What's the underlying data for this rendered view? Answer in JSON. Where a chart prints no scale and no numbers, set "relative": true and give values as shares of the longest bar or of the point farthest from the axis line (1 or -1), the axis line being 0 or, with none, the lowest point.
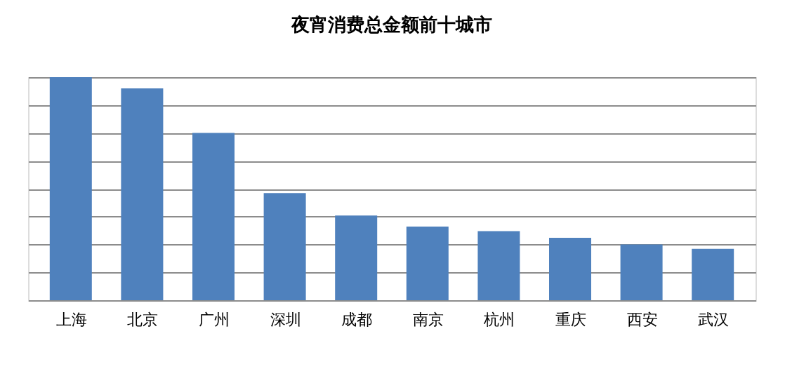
{
  "chart_data": {
    "type": "bar",
    "title": "夜宵消费总金额前十城市",
    "categories": [
      "上海",
      "北京",
      "广州",
      "深圳",
      "成都",
      "南京",
      "杭州",
      "重庆",
      "西安",
      "武汉"
    ],
    "values": [
      1,
      0.95,
      0.75,
      0.48,
      0.38,
      0.33,
      0.31,
      0.28,
      0.25,
      0.23
    ],
    "color": "#4f81bd",
    "relative": true,
    "grid": true
  }
}
